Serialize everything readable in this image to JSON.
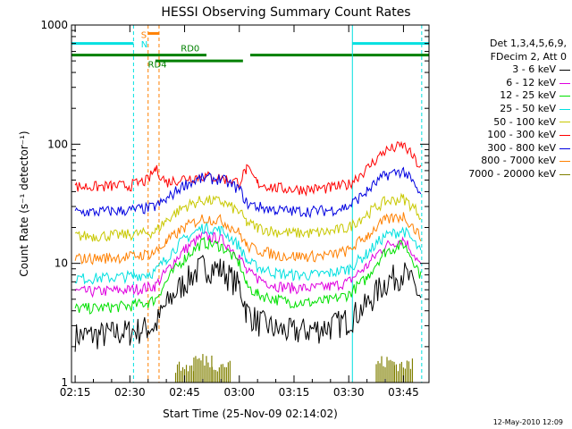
{
  "chart_data": {
    "type": "line",
    "title": "HESSI Observing Summary Count Rates",
    "xlabel": "Start Time (25-Nov-09 02:14:02)",
    "ylabel": "Count Rate (s⁻¹ detector⁻¹)",
    "yscale": "log",
    "ylim": [
      1,
      1000
    ],
    "xlim": [
      "02:14",
      "03:52"
    ],
    "x_ticks": [
      "02:15",
      "02:30",
      "02:45",
      "03:00",
      "03:15",
      "03:30",
      "03:45"
    ],
    "y_ticks": [
      "1",
      "10",
      "100",
      "1000"
    ],
    "legend_header": [
      "Det 1,3,4,5,6,9,",
      "FDecim 2, Att 0"
    ],
    "grid": false,
    "x": [
      "02:15",
      "02:20",
      "02:25",
      "02:30",
      "02:35",
      "02:37",
      "02:40",
      "02:45",
      "02:50",
      "02:55",
      "03:00",
      "03:02",
      "03:05",
      "03:10",
      "03:15",
      "03:20",
      "03:25",
      "03:30",
      "03:35",
      "03:40",
      "03:45",
      "03:50"
    ],
    "series": [
      {
        "name": "3 - 6 keV",
        "color": "#000000",
        "values": [
          2.5,
          2.5,
          2.6,
          2.7,
          2.9,
          3.0,
          4.5,
          7.0,
          9.5,
          9.0,
          6.5,
          4.0,
          3.3,
          2.8,
          2.7,
          2.8,
          3.0,
          3.4,
          4.5,
          7.0,
          8.5,
          5.0
        ]
      },
      {
        "name": "6 - 12 keV",
        "color": "#e000e0",
        "values": [
          5.8,
          5.8,
          5.9,
          6.0,
          6.3,
          6.5,
          8.5,
          13.0,
          17.0,
          16.0,
          11.5,
          8.5,
          7.5,
          6.5,
          6.2,
          6.2,
          6.4,
          7.0,
          9.5,
          14.0,
          16.0,
          9.0
        ]
      },
      {
        "name": "12 - 25 keV",
        "color": "#00e000",
        "values": [
          4.2,
          4.2,
          4.3,
          4.4,
          4.7,
          5.0,
          7.0,
          11.0,
          15.0,
          14.0,
          10.0,
          6.5,
          5.5,
          5.0,
          4.7,
          4.7,
          4.9,
          5.5,
          7.5,
          12.5,
          14.5,
          7.5
        ]
      },
      {
        "name": "25 - 50 keV",
        "color": "#00e0e0",
        "values": [
          7.5,
          7.5,
          7.6,
          7.8,
          8.2,
          8.5,
          11.0,
          16.0,
          20.0,
          19.0,
          14.0,
          10.5,
          9.3,
          8.3,
          8.0,
          8.0,
          8.3,
          9.0,
          12.0,
          17.0,
          19.0,
          12.0
        ]
      },
      {
        "name": "50 - 100 keV",
        "color": "#c8c800",
        "values": [
          17,
          17,
          17.2,
          17.5,
          18,
          18.5,
          23,
          30,
          34,
          33,
          27,
          22,
          20,
          18.5,
          18,
          18,
          18.5,
          20,
          26,
          33,
          35,
          25
        ]
      },
      {
        "name": "100 - 300 keV",
        "color": "#ff0000",
        "values": [
          44,
          44,
          44.5,
          45,
          50,
          62,
          48,
          52,
          54,
          52,
          48,
          62,
          47,
          43,
          42,
          42,
          43,
          46,
          62,
          88,
          98,
          60
        ]
      },
      {
        "name": "300 - 800 keV",
        "color": "#0000e0",
        "values": [
          27,
          27,
          27.5,
          28,
          29,
          30,
          34,
          46,
          52,
          51,
          42,
          32,
          30,
          28,
          27.5,
          27.5,
          28,
          30,
          40,
          55,
          60,
          35
        ]
      },
      {
        "name": "800 - 7000 keV",
        "color": "#ff8000",
        "values": [
          11,
          11,
          11.2,
          11.4,
          12,
          12.5,
          15,
          20,
          24,
          23,
          18,
          14,
          13,
          11.8,
          11.5,
          11.5,
          11.8,
          12.8,
          17,
          23,
          25,
          16
        ]
      },
      {
        "name": "7000 - 20000 keV",
        "color": "#808000",
        "values": [
          null,
          null,
          null,
          null,
          null,
          null,
          null,
          1.5,
          1.8,
          1.6,
          null,
          null,
          null,
          null,
          null,
          null,
          null,
          null,
          null,
          1.7,
          1.6,
          null
        ]
      }
    ],
    "annotations": [
      {
        "label": "S",
        "color": "#ff8000",
        "x": "02:35",
        "y": 780
      },
      {
        "label": "N",
        "color": "#00e0e0",
        "x": "02:35",
        "y": 650
      },
      {
        "label": "RD0",
        "color": "#008000",
        "x": "02:42",
        "y": 600
      },
      {
        "label": "RD4",
        "color": "#008000",
        "x": "02:33",
        "y": 440
      }
    ],
    "bars": [
      {
        "color": "#00e0e0",
        "y": 700,
        "from": "02:14",
        "to": "02:31"
      },
      {
        "color": "#00e0e0",
        "y": 700,
        "from": "03:31",
        "to": "03:52"
      },
      {
        "color": "#ff8000",
        "y": 850,
        "from": "02:35",
        "to": "02:38"
      },
      {
        "color": "#008000",
        "y": 560,
        "from": "02:14",
        "to": "02:51"
      },
      {
        "color": "#008000",
        "y": 500,
        "from": "02:37",
        "to": "03:01"
      },
      {
        "color": "#008000",
        "y": 560,
        "from": "03:03",
        "to": "03:52"
      }
    ],
    "vlines": [
      {
        "color": "#00e0e0",
        "style": "solid",
        "x": "02:14"
      },
      {
        "color": "#00e0e0",
        "style": "dashed",
        "x": "02:31"
      },
      {
        "color": "#00e0e0",
        "style": "solid",
        "x": "03:31"
      },
      {
        "color": "#00e0e0",
        "style": "dashed",
        "x": "03:50"
      },
      {
        "color": "#ff8000",
        "style": "dashed",
        "x": "02:35"
      },
      {
        "color": "#ff8000",
        "style": "dashed",
        "x": "02:38"
      }
    ]
  },
  "footer": {
    "timestamp": "12-May-2010 12:09"
  }
}
